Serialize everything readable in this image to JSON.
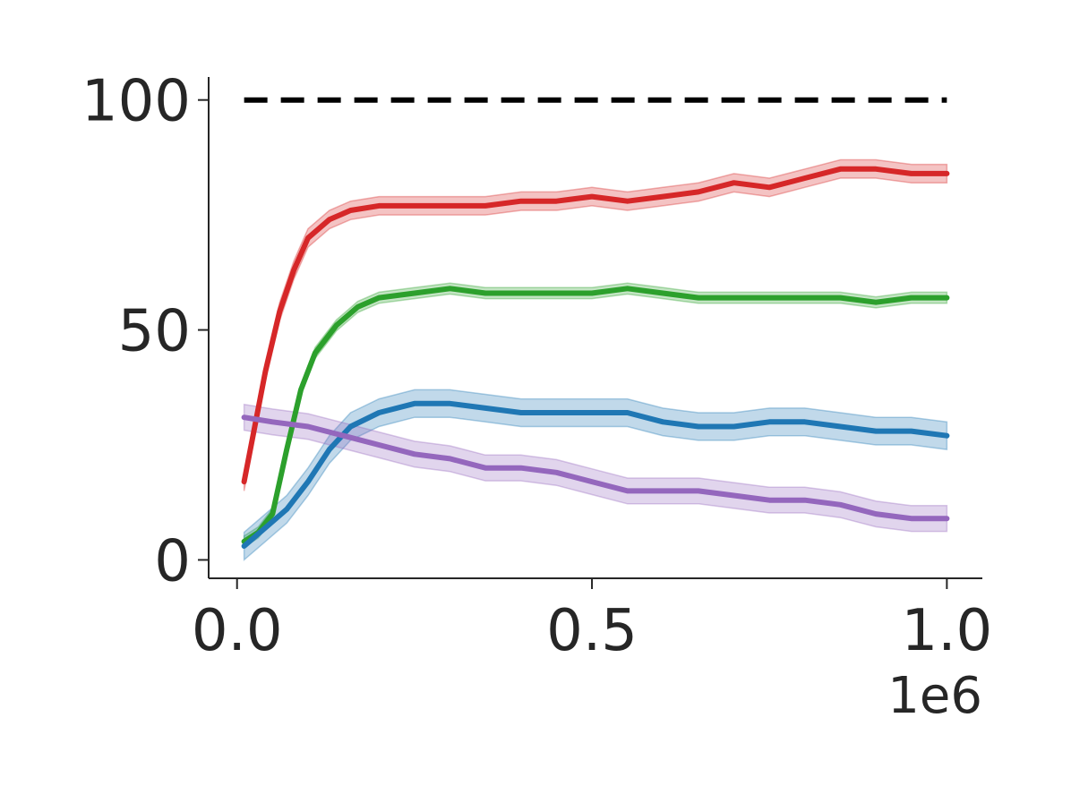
{
  "chart_data": {
    "type": "line",
    "title": "",
    "xlabel": "",
    "ylabel": "",
    "x_offset_label": "1e6",
    "xlim": [
      -0.04,
      1.05
    ],
    "ylim": [
      -4,
      105
    ],
    "xticks": [
      0.0,
      0.5,
      1.0
    ],
    "xtick_labels": [
      "0.0",
      "0.5",
      "1.0"
    ],
    "yticks": [
      0,
      50,
      100
    ],
    "ytick_labels": [
      "0",
      "50",
      "100"
    ],
    "grid": false,
    "legend": "none",
    "reference_line": {
      "y": 100,
      "x_range": [
        0.01,
        1.0
      ],
      "color": "#000000",
      "style": "dashed"
    },
    "series": [
      {
        "color": "#d62728",
        "x": [
          0.01,
          0.025,
          0.04,
          0.06,
          0.08,
          0.1,
          0.13,
          0.16,
          0.2,
          0.25,
          0.3,
          0.35,
          0.4,
          0.45,
          0.5,
          0.55,
          0.6,
          0.65,
          0.7,
          0.75,
          0.8,
          0.85,
          0.9,
          0.95,
          1.0
        ],
        "y": [
          17,
          29,
          41,
          54,
          63,
          70,
          74,
          76,
          77,
          77,
          77,
          77,
          78,
          78,
          79,
          78,
          79,
          80,
          82,
          81,
          83,
          85,
          85,
          84,
          84
        ],
        "band": 2.0
      },
      {
        "color": "#2ca02c",
        "x": [
          0.01,
          0.03,
          0.05,
          0.07,
          0.09,
          0.11,
          0.14,
          0.17,
          0.2,
          0.25,
          0.3,
          0.35,
          0.4,
          0.45,
          0.5,
          0.55,
          0.6,
          0.65,
          0.7,
          0.75,
          0.8,
          0.85,
          0.9,
          0.95,
          1.0
        ],
        "y": [
          4,
          6,
          10,
          24,
          37,
          45,
          51,
          55,
          57,
          58,
          59,
          58,
          58,
          58,
          58,
          59,
          58,
          57,
          57,
          57,
          57,
          57,
          56,
          57,
          57
        ],
        "band": 1.2
      },
      {
        "color": "#1f77b4",
        "x": [
          0.01,
          0.04,
          0.07,
          0.1,
          0.13,
          0.16,
          0.2,
          0.25,
          0.3,
          0.35,
          0.4,
          0.45,
          0.5,
          0.55,
          0.6,
          0.65,
          0.7,
          0.75,
          0.8,
          0.85,
          0.9,
          0.95,
          1.0
        ],
        "y": [
          3,
          7,
          11,
          17,
          24,
          29,
          32,
          34,
          34,
          33,
          32,
          32,
          32,
          32,
          30,
          29,
          29,
          30,
          30,
          29,
          28,
          28,
          27
        ],
        "band": 3.0
      },
      {
        "color": "#9467bd",
        "x": [
          0.01,
          0.05,
          0.1,
          0.15,
          0.2,
          0.25,
          0.3,
          0.35,
          0.4,
          0.45,
          0.5,
          0.55,
          0.6,
          0.65,
          0.7,
          0.75,
          0.8,
          0.85,
          0.9,
          0.95,
          1.0
        ],
        "y": [
          31,
          30,
          29,
          27,
          25,
          23,
          22,
          20,
          20,
          19,
          17,
          15,
          15,
          15,
          14,
          13,
          13,
          12,
          10,
          9,
          9
        ],
        "band": 2.8
      }
    ]
  }
}
